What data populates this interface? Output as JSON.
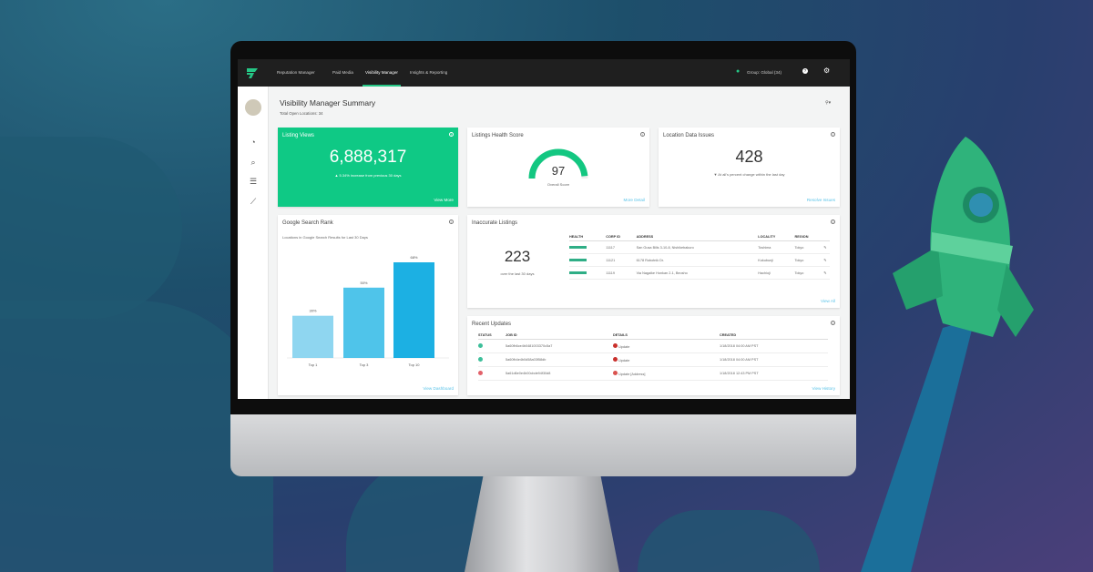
{
  "nav": {
    "items": [
      "Reputation Manager",
      "Paid Media",
      "Visibility Manager",
      "Insights & Reporting"
    ],
    "active": "Visibility Manager",
    "group": "Group: Global (34)"
  },
  "page": {
    "title": "Visibility Manager Summary",
    "subtitle": "Total Open Locations: 34"
  },
  "listing_views": {
    "title": "Listing Views",
    "value": "6,888,317",
    "change": "5.34% increase from previous 30 days",
    "link": "View More"
  },
  "health": {
    "title": "Listings Health Score",
    "value": "97",
    "label": "Overall Score",
    "score_percent": 97,
    "link": "More Detail"
  },
  "location_issues": {
    "title": "Location Data Issues",
    "value": "428",
    "change": "At all's percent change within the last day",
    "link": "Resolve Issues"
  },
  "google_rank": {
    "title": "Google Search Rank",
    "subtitle": "Locations in Google Search Results for Last 30 Days",
    "link": "View Dashboard"
  },
  "chart_data": {
    "type": "bar",
    "categories": [
      "Top 1",
      "Top 3",
      "Top 10"
    ],
    "values": [
      30,
      50,
      68
    ],
    "labels": [
      "30%",
      "50%",
      "68%"
    ],
    "colors": [
      "#8fd6f0",
      "#4fc4ea",
      "#1cb0e3"
    ]
  },
  "inaccurate": {
    "title": "Inaccurate Listings",
    "value": "223",
    "sub": "over the last 30 days",
    "headers": [
      "HEALTH",
      "CORP ID",
      "ADDRESS",
      "LOCALITY",
      "REGION"
    ],
    "rows": [
      {
        "corp": "11117",
        "address": "San Gusa Bills 3-10-8, Nishikebakuro",
        "locality": "Toshima",
        "region": "Tokyo"
      },
      {
        "corp": "11121",
        "address": "6178 Robotnik Dr.",
        "locality": "Kokubunji",
        "region": "Tokyo"
      },
      {
        "corp": "11119",
        "address": "Via Nagaike Honkan 2-1, Beosho",
        "locality": "Hachioji",
        "region": "Tokyo"
      }
    ],
    "link": "View All"
  },
  "recent": {
    "title": "Recent Updates",
    "headers": [
      "STATUS",
      "JOB ID",
      "DETAILS",
      "CREATED"
    ],
    "rows": [
      {
        "status": "success",
        "job": "5a60fb6ce4b0481003370c5a7",
        "details": "Update",
        "created": "1/18/2018 04:00 AM PST"
      },
      {
        "status": "success",
        "job": "5a60fb4e4b0d58a03f58db",
        "details": "Update",
        "created": "1/18/2018 04:00 AM PST"
      },
      {
        "status": "error",
        "job": "5a61d6e0e4b00cbde94f30d8",
        "details": "Update [Address]",
        "created": "1/18/2018 12:43 PM PST"
      }
    ],
    "link": "View History"
  },
  "colors": {
    "accent": "#25c685",
    "link": "#5ac3e8",
    "nav_bg": "#1f1f1f",
    "error": "#d9534f"
  }
}
